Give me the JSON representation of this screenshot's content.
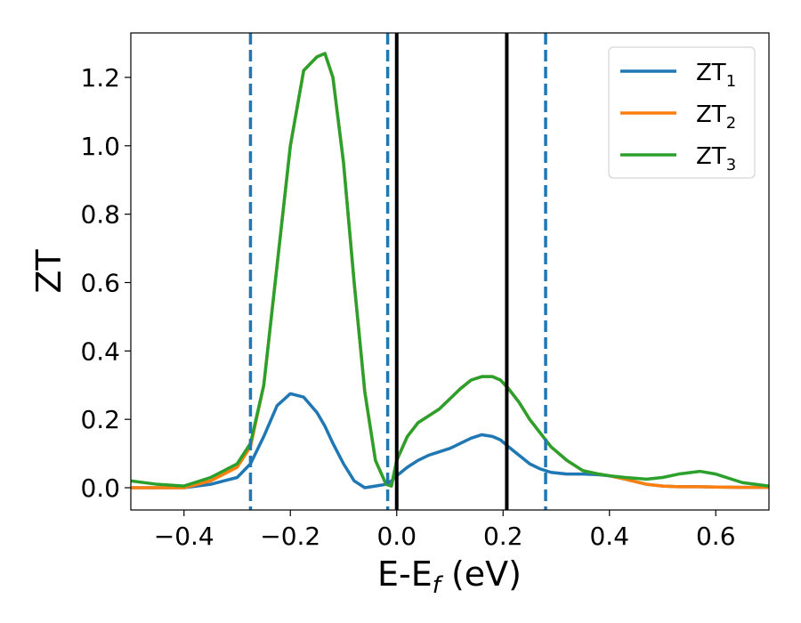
{
  "chart_data": {
    "type": "line",
    "xlabel": "E-E",
    "xlabel_sub": "f",
    "xlabel_unit": " (eV)",
    "ylabel": "ZT",
    "xlim": [
      -0.5,
      0.7
    ],
    "ylim": [
      -0.065,
      1.33
    ],
    "xticks": [
      -0.4,
      -0.2,
      0.0,
      0.2,
      0.4,
      0.6
    ],
    "xtick_labels": [
      "−0.4",
      "−0.2",
      "0.0",
      "0.2",
      "0.4",
      "0.6"
    ],
    "yticks": [
      0.0,
      0.2,
      0.4,
      0.6,
      0.8,
      1.0,
      1.2
    ],
    "ytick_labels": [
      "0.0",
      "0.2",
      "0.4",
      "0.6",
      "0.8",
      "1.0",
      "1.2"
    ],
    "grid": false,
    "legend_position": "top-right",
    "vlines": [
      {
        "x": -0.275,
        "style": "dashed",
        "color": "#1f77b4"
      },
      {
        "x": -0.017,
        "style": "dashed",
        "color": "#1f77b4"
      },
      {
        "x": 0.0,
        "style": "solid",
        "color": "#000000"
      },
      {
        "x": 0.207,
        "style": "solid",
        "color": "#000000"
      },
      {
        "x": 0.28,
        "style": "dashed",
        "color": "#1f77b4"
      }
    ],
    "x": [
      -0.5,
      -0.45,
      -0.4,
      -0.35,
      -0.3,
      -0.275,
      -0.25,
      -0.225,
      -0.2,
      -0.175,
      -0.15,
      -0.135,
      -0.12,
      -0.1,
      -0.08,
      -0.06,
      -0.04,
      -0.02,
      -0.01,
      0.0,
      0.02,
      0.04,
      0.06,
      0.08,
      0.1,
      0.12,
      0.14,
      0.16,
      0.18,
      0.195,
      0.21,
      0.23,
      0.25,
      0.27,
      0.29,
      0.32,
      0.35,
      0.38,
      0.4,
      0.43,
      0.47,
      0.5,
      0.53,
      0.57,
      0.6,
      0.65,
      0.7
    ],
    "series": [
      {
        "name": "ZT",
        "name_sub": "1",
        "color": "#1f77b4",
        "values": [
          0.0,
          0.0,
          0.0,
          0.01,
          0.03,
          0.07,
          0.15,
          0.24,
          0.275,
          0.265,
          0.22,
          0.18,
          0.13,
          0.07,
          0.02,
          0.0,
          0.005,
          0.01,
          0.02,
          0.035,
          0.06,
          0.08,
          0.095,
          0.105,
          0.115,
          0.13,
          0.145,
          0.155,
          0.15,
          0.14,
          0.12,
          0.095,
          0.07,
          0.055,
          0.045,
          0.04,
          0.04,
          0.038,
          0.035,
          0.025,
          0.01,
          0.005,
          0.003,
          0.003,
          0.002,
          0.001,
          0.001
        ]
      },
      {
        "name": "ZT",
        "name_sub": "2",
        "color": "#ff7f0e",
        "values": [
          0.0,
          0.0,
          0.0,
          0.02,
          0.06,
          0.12,
          0.3,
          0.65,
          1.0,
          1.22,
          1.26,
          1.27,
          1.2,
          0.95,
          0.6,
          0.28,
          0.08,
          0.01,
          0.005,
          0.08,
          0.15,
          0.19,
          0.21,
          0.23,
          0.26,
          0.29,
          0.315,
          0.325,
          0.325,
          0.315,
          0.29,
          0.25,
          0.2,
          0.16,
          0.12,
          0.08,
          0.05,
          0.04,
          0.035,
          0.025,
          0.01,
          0.005,
          0.003,
          0.003,
          0.002,
          0.001,
          0.001
        ]
      },
      {
        "name": "ZT",
        "name_sub": "3",
        "color": "#2ca02c",
        "values": [
          0.02,
          0.01,
          0.005,
          0.03,
          0.07,
          0.13,
          0.3,
          0.65,
          1.0,
          1.22,
          1.26,
          1.27,
          1.2,
          0.95,
          0.6,
          0.28,
          0.08,
          0.01,
          0.005,
          0.08,
          0.15,
          0.19,
          0.21,
          0.23,
          0.26,
          0.29,
          0.315,
          0.325,
          0.325,
          0.315,
          0.29,
          0.25,
          0.2,
          0.16,
          0.12,
          0.08,
          0.05,
          0.04,
          0.035,
          0.03,
          0.025,
          0.03,
          0.04,
          0.048,
          0.04,
          0.015,
          0.005
        ]
      }
    ]
  }
}
